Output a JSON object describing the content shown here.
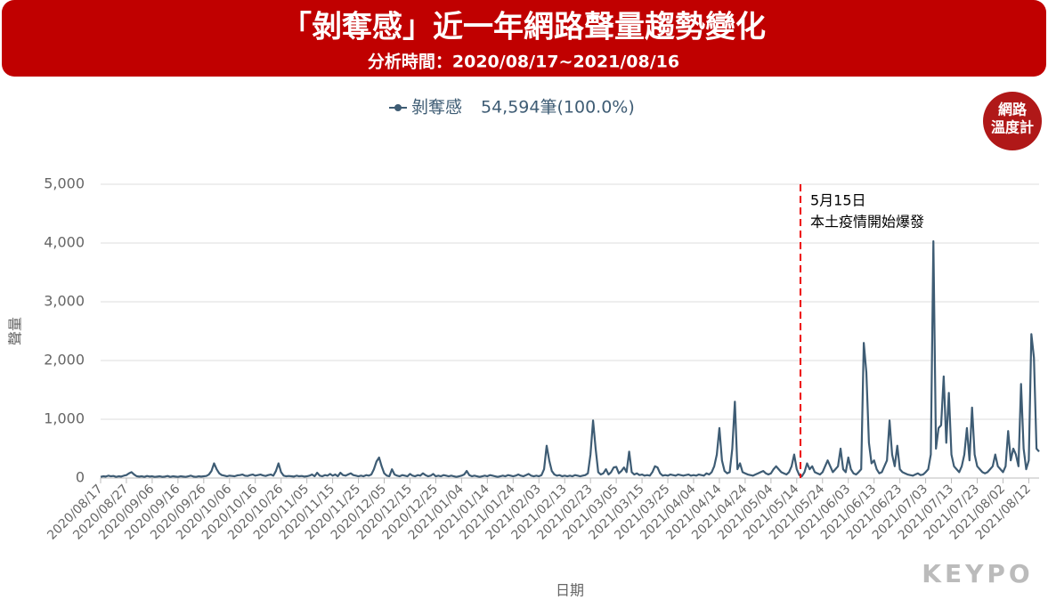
{
  "chart_data": {
    "type": "line",
    "title": "「剝奪感」近一年網路聲量趨勢變化",
    "subtitle": "分析時間：2020/08/17~2021/08/16",
    "x_label": "日期",
    "y_label": "聲量",
    "legend_label": "54,594筆(100.0%)",
    "annotation": [
      "5月15日",
      "本土疫情開始爆發"
    ],
    "badge": [
      "網路",
      "溫度計"
    ],
    "logo": "KEYPO",
    "ylim": [
      0,
      5000
    ],
    "yticks": [
      0,
      {
        "value": 1000,
        "label": "1,000"
      },
      {
        "value": 2000,
        "label": "2,000"
      },
      {
        "value": 3000,
        "label": "3,000"
      },
      {
        "value": 4000,
        "label": "4,000"
      },
      {
        "value": 5000,
        "label": "5,000"
      }
    ],
    "grid": true,
    "categories": [
      "2020/08/17",
      null,
      null,
      null,
      null,
      null,
      null,
      null,
      null,
      null,
      "2020/08/27",
      null,
      null,
      null,
      null,
      null,
      null,
      null,
      null,
      null,
      "2020/09/06",
      null,
      null,
      null,
      null,
      null,
      null,
      null,
      null,
      null,
      "2020/09/16",
      null,
      null,
      null,
      null,
      null,
      null,
      null,
      null,
      null,
      "2020/09/26",
      null,
      null,
      null,
      null,
      null,
      null,
      null,
      null,
      null,
      "2020/10/06",
      null,
      null,
      null,
      null,
      null,
      null,
      null,
      null,
      null,
      "2020/10/16",
      null,
      null,
      null,
      null,
      null,
      null,
      null,
      null,
      null,
      "2020/10/26",
      null,
      null,
      null,
      null,
      null,
      null,
      null,
      null,
      null,
      "2020/11/05",
      null,
      null,
      null,
      null,
      null,
      null,
      null,
      null,
      null,
      "2020/11/15",
      null,
      null,
      null,
      null,
      null,
      null,
      null,
      null,
      null,
      "2020/11/25",
      null,
      null,
      null,
      null,
      null,
      null,
      null,
      null,
      null,
      "2020/12/05",
      null,
      null,
      null,
      null,
      null,
      null,
      null,
      null,
      null,
      "2020/12/15",
      null,
      null,
      null,
      null,
      null,
      null,
      null,
      null,
      null,
      "2020/12/25",
      null,
      null,
      null,
      null,
      null,
      null,
      null,
      null,
      null,
      "2021/01/04",
      null,
      null,
      null,
      null,
      null,
      null,
      null,
      null,
      null,
      "2021/01/14",
      null,
      null,
      null,
      null,
      null,
      null,
      null,
      null,
      null,
      "2021/01/24",
      null,
      null,
      null,
      null,
      null,
      null,
      null,
      null,
      null,
      "2021/02/03",
      null,
      null,
      null,
      null,
      null,
      null,
      null,
      null,
      null,
      "2021/02/13",
      null,
      null,
      null,
      null,
      null,
      null,
      null,
      null,
      null,
      "2021/02/23",
      null,
      null,
      null,
      null,
      null,
      null,
      null,
      null,
      null,
      "2021/03/05",
      null,
      null,
      null,
      null,
      null,
      null,
      null,
      null,
      null,
      "2021/03/15",
      null,
      null,
      null,
      null,
      null,
      null,
      null,
      null,
      null,
      "2021/03/25",
      null,
      null,
      null,
      null,
      null,
      null,
      null,
      null,
      null,
      "2021/04/04",
      null,
      null,
      null,
      null,
      null,
      null,
      null,
      null,
      null,
      "2021/04/14",
      null,
      null,
      null,
      null,
      null,
      null,
      null,
      null,
      null,
      "2021/04/24",
      null,
      null,
      null,
      null,
      null,
      null,
      null,
      null,
      null,
      "2021/05/04",
      null,
      null,
      null,
      null,
      null,
      null,
      null,
      null,
      null,
      "2021/05/14",
      null,
      null,
      null,
      null,
      null,
      null,
      null,
      null,
      null,
      "2021/05/24",
      null,
      null,
      null,
      null,
      null,
      null,
      null,
      null,
      null,
      "2021/06/03",
      null,
      null,
      null,
      null,
      null,
      null,
      null,
      null,
      null,
      "2021/06/13",
      null,
      null,
      null,
      null,
      null,
      null,
      null,
      null,
      null,
      "2021/06/23",
      null,
      null,
      null,
      null,
      null,
      null,
      null,
      null,
      null,
      "2021/07/03",
      null,
      null,
      null,
      null,
      null,
      null,
      null,
      null,
      null,
      "2021/07/13",
      null,
      null,
      null,
      null,
      null,
      null,
      null,
      null,
      null,
      "2021/07/23",
      null,
      null,
      null,
      null,
      null,
      null,
      null,
      null,
      null,
      "2021/08/02",
      null,
      null,
      null,
      null,
      null,
      null,
      null,
      null,
      null,
      "2021/08/12",
      null,
      null,
      null,
      null
    ],
    "series": [
      {
        "name": "剝奪感",
        "color": "#3e5c74",
        "values": [
          20,
          30,
          25,
          40,
          30,
          35,
          20,
          30,
          25,
          40,
          50,
          80,
          100,
          60,
          30,
          25,
          30,
          20,
          35,
          25,
          30,
          20,
          25,
          30,
          20,
          25,
          35,
          20,
          30,
          25,
          20,
          30,
          25,
          20,
          30,
          40,
          25,
          20,
          30,
          25,
          30,
          35,
          60,
          120,
          250,
          150,
          80,
          50,
          40,
          30,
          40,
          35,
          30,
          45,
          50,
          60,
          40,
          35,
          50,
          60,
          40,
          50,
          60,
          45,
          35,
          50,
          60,
          40,
          120,
          250,
          100,
          40,
          30,
          35,
          30,
          25,
          40,
          30,
          35,
          25,
          30,
          40,
          60,
          30,
          90,
          40,
          30,
          50,
          40,
          70,
          40,
          60,
          30,
          90,
          50,
          40,
          60,
          80,
          50,
          40,
          30,
          40,
          30,
          50,
          40,
          60,
          150,
          280,
          350,
          200,
          80,
          40,
          30,
          150,
          60,
          40,
          30,
          50,
          40,
          30,
          70,
          40,
          30,
          50,
          40,
          80,
          50,
          30,
          40,
          70,
          30,
          40,
          30,
          50,
          40,
          30,
          40,
          30,
          20,
          30,
          40,
          60,
          120,
          50,
          30,
          40,
          30,
          20,
          30,
          40,
          30,
          50,
          40,
          30,
          20,
          30,
          40,
          30,
          50,
          40,
          30,
          40,
          60,
          40,
          30,
          50,
          70,
          40,
          30,
          40,
          30,
          50,
          150,
          550,
          300,
          120,
          60,
          40,
          50,
          30,
          40,
          30,
          40,
          30,
          50,
          40,
          30,
          40,
          50,
          80,
          400,
          980,
          500,
          100,
          60,
          80,
          150,
          60,
          100,
          180,
          190,
          80,
          120,
          180,
          100,
          450,
          100,
          60,
          80,
          50,
          60,
          40,
          50,
          40,
          100,
          200,
          180,
          80,
          40,
          50,
          40,
          60,
          50,
          40,
          60,
          50,
          40,
          50,
          60,
          40,
          50,
          40,
          60,
          50,
          40,
          80,
          60,
          100,
          200,
          400,
          850,
          300,
          120,
          80,
          100,
          500,
          1300,
          150,
          250,
          100,
          80,
          60,
          50,
          40,
          60,
          80,
          100,
          120,
          80,
          60,
          80,
          150,
          200,
          150,
          100,
          80,
          60,
          100,
          200,
          400,
          150,
          50,
          30,
          100,
          250,
          150,
          200,
          100,
          80,
          60,
          100,
          200,
          300,
          200,
          100,
          150,
          200,
          500,
          150,
          100,
          350,
          150,
          80,
          60,
          100,
          150,
          2300,
          1800,
          600,
          250,
          300,
          150,
          80,
          100,
          200,
          300,
          980,
          400,
          200,
          550,
          150,
          100,
          80,
          60,
          50,
          40,
          60,
          80,
          50,
          60,
          100,
          150,
          400,
          4030,
          500,
          850,
          900,
          1730,
          600,
          1450,
          400,
          200,
          150,
          100,
          200,
          400,
          850,
          300,
          1200,
          400,
          200,
          150,
          100,
          80,
          100,
          150,
          200,
          400,
          200,
          150,
          100,
          200,
          800,
          300,
          500,
          400,
          200,
          1600,
          500,
          150,
          300,
          2450,
          2050,
          500,
          450
        ]
      }
    ]
  }
}
